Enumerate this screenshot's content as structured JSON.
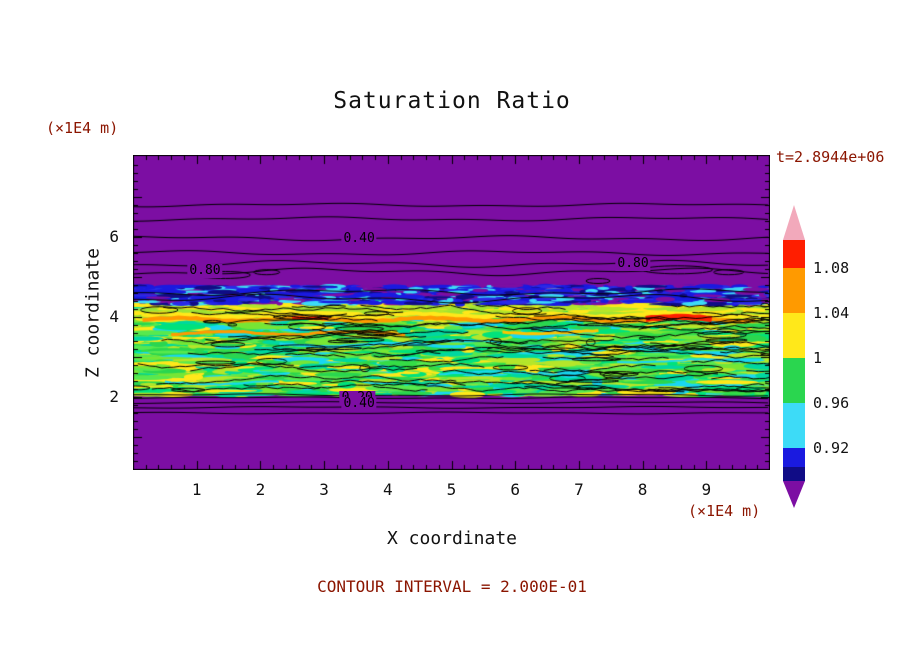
{
  "page": {
    "bg": "#ffffff",
    "text_color": "#111111",
    "annot_color": "#8b1500"
  },
  "chart": {
    "title": "Saturation Ratio",
    "timestamp": "t=2.8944e+06",
    "ylabel": "Z coordinate",
    "xlabel": "X coordinate",
    "y_unit": "(×1E4 m)",
    "x_unit": "(×1E4 m)",
    "footnote": "CONTOUR INTERVAL = 2.000E-01"
  },
  "chart_data": {
    "type": "heatmap",
    "title": "Saturation Ratio",
    "xlabel": "X coordinate",
    "ylabel": "Z coordinate",
    "axis_units": "×1E4 m",
    "time_label": "t=2.8944e+06",
    "contour_interval": "2.000E-01",
    "xlim": [
      0,
      10
    ],
    "ylim": [
      0.18,
      8.05
    ],
    "x_ticks": [
      1,
      2,
      3,
      4,
      5,
      6,
      7,
      8,
      9
    ],
    "y_ticks": [
      2,
      4,
      6
    ],
    "field_summary": "Low saturation (purple, <0.92) above z≈4.8 and below z≈2 with contour lines at 0.2 intervals (labels 0.40, 0.80 above; 0.20, 0.40 below); mottled high-saturation channel band (≈0.92–1.12, green/cyan/yellow with orange-red streaks) between z≈2 and z≈4.6",
    "background_color": "#7c0ea3",
    "colorbar": {
      "labels": [
        "1.08",
        "1.04",
        "1",
        "0.96",
        "0.92"
      ],
      "arrow_top_color": "#f2a9bb",
      "arrow_bottom_color": "#7c0ea3",
      "colors": [
        "#ff1e00",
        "#ff9a00",
        "#ffe81a",
        "#2ad64f",
        "#3ddbf7",
        "#1a1ae0",
        "#100c86"
      ]
    },
    "contour_labels": [
      {
        "text": "0.40",
        "x": 3.55,
        "z": 5.95
      },
      {
        "text": "0.80",
        "x": 1.13,
        "z": 5.15
      },
      {
        "text": "0.80",
        "x": 7.85,
        "z": 5.33
      },
      {
        "text": "0.20",
        "x": 3.52,
        "z": 1.98
      },
      {
        "text": "0.40",
        "x": 3.55,
        "z": 1.82
      }
    ],
    "contour_lines": [
      {
        "z": 6.8,
        "amp": 1.2
      },
      {
        "z": 6.45,
        "amp": 1.4
      },
      {
        "z": 5.97,
        "amp": 1.6
      },
      {
        "z": 5.6,
        "amp": 1.6
      },
      {
        "z": 5.33,
        "amp": 2.2
      },
      {
        "z": 5.13,
        "amp": 2.4
      },
      {
        "z": 4.62,
        "amp": 2.2
      },
      {
        "z": 4.46,
        "amp": 2.8
      },
      {
        "z": 2.05,
        "amp": 0.8
      },
      {
        "z": 1.98,
        "amp": 0.6
      },
      {
        "z": 1.86,
        "amp": 0.6
      },
      {
        "z": 1.74,
        "amp": 0.6
      },
      {
        "z": 1.6,
        "amp": 0.6
      }
    ],
    "loops": [
      {
        "x": 1.45,
        "z": 5.05,
        "w": 50,
        "h": 7
      },
      {
        "x": 2.1,
        "z": 5.12,
        "w": 26,
        "h": 5
      },
      {
        "x": 8.55,
        "z": 5.18,
        "w": 70,
        "h": 8
      },
      {
        "x": 9.35,
        "z": 5.12,
        "w": 30,
        "h": 5
      },
      {
        "x": 7.3,
        "z": 4.9,
        "w": 24,
        "h": 5
      }
    ],
    "streaks": [
      {
        "z": 4.05,
        "x0": 0.2,
        "x1": 9.8,
        "color": "#ffe81a",
        "lw": 4
      },
      {
        "z": 3.94,
        "x0": 0.15,
        "x1": 9.85,
        "color": "#ff9a00",
        "lw": 4
      },
      {
        "z": 3.96,
        "x0": 8.05,
        "x1": 9.15,
        "color": "#ff1e00",
        "lw": 6
      },
      {
        "z": 3.94,
        "x0": 2.5,
        "x1": 3.1,
        "color": "#ff1e00",
        "lw": 3
      },
      {
        "z": 3.6,
        "x0": 0.6,
        "x1": 4.3,
        "color": "#ff9a00",
        "lw": 3
      },
      {
        "z": 3.62,
        "x0": 5.8,
        "x1": 7.4,
        "color": "#ffc400",
        "lw": 3
      },
      {
        "z": 3.3,
        "x0": 2.3,
        "x1": 5.3,
        "color": "#19d7f2",
        "lw": 3
      },
      {
        "z": 2.6,
        "x0": 4.8,
        "x1": 7.2,
        "color": "#19d7f2",
        "lw": 2
      },
      {
        "z": 2.35,
        "x0": 0.5,
        "x1": 2.3,
        "color": "#19d7f2",
        "lw": 2
      },
      {
        "z": 2.9,
        "x0": 7.6,
        "x1": 9.6,
        "color": "#19d7f2",
        "lw": 2
      }
    ],
    "noise_bands": [
      {
        "z0": 2.05,
        "z1": 4.38,
        "base": "#2ad64f",
        "palette": [
          "#00e27c",
          "#35dd46",
          "#77e635",
          "#b5e62a",
          "#ffe81a",
          "#19d7f2",
          "#2ad64f",
          "#00d8a0",
          "#57e94f"
        ],
        "density": 2600,
        "wmin": 8,
        "wmax": 64,
        "hmin": 2,
        "hmax": 7
      },
      {
        "z0": 3.98,
        "z1": 4.34,
        "base": null,
        "palette": [
          "#ffe81a",
          "#b5e62a",
          "#9fe335"
        ],
        "density": 500,
        "wmin": 10,
        "wmax": 50,
        "hmin": 2,
        "hmax": 5
      },
      {
        "z0": 4.32,
        "z1": 4.78,
        "base": null,
        "palette": [
          "#100c86",
          "#1a1ae0",
          "#2a2ae8",
          "#7c0ea3",
          "#3ddbf7",
          "#1a1ae0"
        ],
        "density": 900,
        "wmin": 6,
        "wmax": 36,
        "hmin": 2,
        "hmax": 5
      }
    ]
  }
}
